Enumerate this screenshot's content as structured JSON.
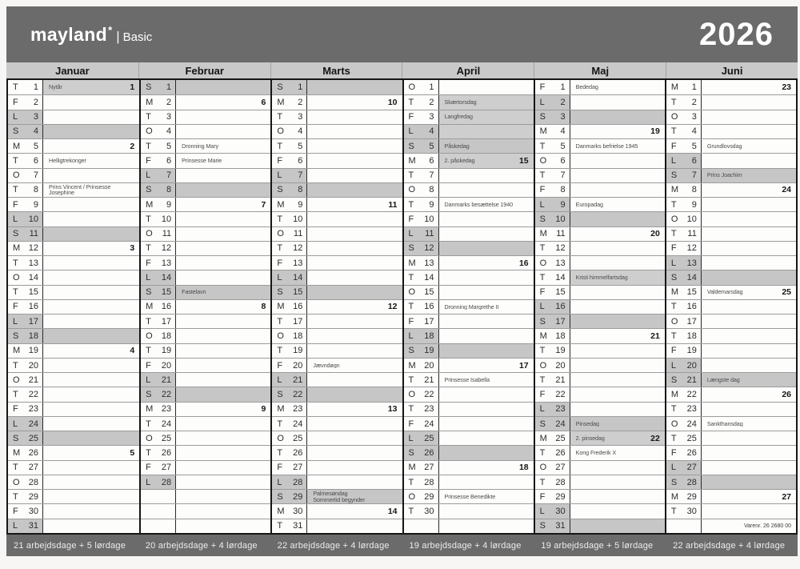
{
  "brand": {
    "name": "mayland",
    "star": "*",
    "separator": "|",
    "sub": "Basic"
  },
  "year": "2026",
  "colors": {
    "header_bg": "#6b6b6b",
    "bar_bg": "#c9c9c9",
    "weekend_shade": "#c6c6c6",
    "holiday_shade": "#cecece"
  },
  "months": [
    {
      "name": "Januar",
      "summary": "21 arbejdsdage + 5 lørdage",
      "days": [
        {
          "w": "T",
          "n": 1,
          "note": "Nytår",
          "wk": "1",
          "hs": true
        },
        {
          "w": "F",
          "n": 2
        },
        {
          "w": "L",
          "n": 3
        },
        {
          "w": "S",
          "n": 4
        },
        {
          "w": "M",
          "n": 5,
          "wk": "2"
        },
        {
          "w": "T",
          "n": 6,
          "note": "Helligtrekonger"
        },
        {
          "w": "O",
          "n": 7
        },
        {
          "w": "T",
          "n": 8,
          "note": "Prins Vincent / Prinsesse Josephine"
        },
        {
          "w": "F",
          "n": 9
        },
        {
          "w": "L",
          "n": 10
        },
        {
          "w": "S",
          "n": 11
        },
        {
          "w": "M",
          "n": 12,
          "wk": "3"
        },
        {
          "w": "T",
          "n": 13
        },
        {
          "w": "O",
          "n": 14
        },
        {
          "w": "T",
          "n": 15
        },
        {
          "w": "F",
          "n": 16
        },
        {
          "w": "L",
          "n": 17
        },
        {
          "w": "S",
          "n": 18
        },
        {
          "w": "M",
          "n": 19,
          "wk": "4"
        },
        {
          "w": "T",
          "n": 20
        },
        {
          "w": "O",
          "n": 21
        },
        {
          "w": "T",
          "n": 22
        },
        {
          "w": "F",
          "n": 23
        },
        {
          "w": "L",
          "n": 24
        },
        {
          "w": "S",
          "n": 25
        },
        {
          "w": "M",
          "n": 26,
          "wk": "5"
        },
        {
          "w": "T",
          "n": 27
        },
        {
          "w": "O",
          "n": 28
        },
        {
          "w": "T",
          "n": 29
        },
        {
          "w": "F",
          "n": 30
        },
        {
          "w": "L",
          "n": 31
        }
      ]
    },
    {
      "name": "Februar",
      "summary": "20 arbejdsdage + 4 lørdage",
      "days": [
        {
          "w": "S",
          "n": 1
        },
        {
          "w": "M",
          "n": 2,
          "wk": "6"
        },
        {
          "w": "T",
          "n": 3
        },
        {
          "w": "O",
          "n": 4
        },
        {
          "w": "T",
          "n": 5,
          "note": "Dronning Mary"
        },
        {
          "w": "F",
          "n": 6,
          "note": "Prinsesse Marie"
        },
        {
          "w": "L",
          "n": 7
        },
        {
          "w": "S",
          "n": 8
        },
        {
          "w": "M",
          "n": 9,
          "wk": "7"
        },
        {
          "w": "T",
          "n": 10
        },
        {
          "w": "O",
          "n": 11
        },
        {
          "w": "T",
          "n": 12
        },
        {
          "w": "F",
          "n": 13
        },
        {
          "w": "L",
          "n": 14
        },
        {
          "w": "S",
          "n": 15,
          "note": "Fastelavn"
        },
        {
          "w": "M",
          "n": 16,
          "wk": "8"
        },
        {
          "w": "T",
          "n": 17
        },
        {
          "w": "O",
          "n": 18
        },
        {
          "w": "T",
          "n": 19
        },
        {
          "w": "F",
          "n": 20
        },
        {
          "w": "L",
          "n": 21
        },
        {
          "w": "S",
          "n": 22
        },
        {
          "w": "M",
          "n": 23,
          "wk": "9"
        },
        {
          "w": "T",
          "n": 24
        },
        {
          "w": "O",
          "n": 25
        },
        {
          "w": "T",
          "n": 26
        },
        {
          "w": "F",
          "n": 27
        },
        {
          "w": "L",
          "n": 28
        }
      ]
    },
    {
      "name": "Marts",
      "summary": "22 arbejdsdage + 4 lørdage",
      "days": [
        {
          "w": "S",
          "n": 1
        },
        {
          "w": "M",
          "n": 2,
          "wk": "10"
        },
        {
          "w": "T",
          "n": 3
        },
        {
          "w": "O",
          "n": 4
        },
        {
          "w": "T",
          "n": 5
        },
        {
          "w": "F",
          "n": 6
        },
        {
          "w": "L",
          "n": 7
        },
        {
          "w": "S",
          "n": 8
        },
        {
          "w": "M",
          "n": 9,
          "wk": "11"
        },
        {
          "w": "T",
          "n": 10
        },
        {
          "w": "O",
          "n": 11
        },
        {
          "w": "T",
          "n": 12
        },
        {
          "w": "F",
          "n": 13
        },
        {
          "w": "L",
          "n": 14
        },
        {
          "w": "S",
          "n": 15
        },
        {
          "w": "M",
          "n": 16,
          "wk": "12"
        },
        {
          "w": "T",
          "n": 17
        },
        {
          "w": "O",
          "n": 18
        },
        {
          "w": "T",
          "n": 19
        },
        {
          "w": "F",
          "n": 20,
          "note": "Jævndøgn"
        },
        {
          "w": "L",
          "n": 21
        },
        {
          "w": "S",
          "n": 22
        },
        {
          "w": "M",
          "n": 23,
          "wk": "13"
        },
        {
          "w": "T",
          "n": 24
        },
        {
          "w": "O",
          "n": 25
        },
        {
          "w": "T",
          "n": 26
        },
        {
          "w": "F",
          "n": 27
        },
        {
          "w": "L",
          "n": 28
        },
        {
          "w": "S",
          "n": 29,
          "note": "Palmesøndag\nSommertid begynder"
        },
        {
          "w": "M",
          "n": 30,
          "wk": "14"
        },
        {
          "w": "T",
          "n": 31
        }
      ]
    },
    {
      "name": "April",
      "summary": "19 arbejdsdage + 4 lørdage",
      "days": [
        {
          "w": "O",
          "n": 1
        },
        {
          "w": "T",
          "n": 2,
          "note": "Skærtorsdag",
          "hs": true
        },
        {
          "w": "F",
          "n": 3,
          "note": "Langfredag",
          "hs": true
        },
        {
          "w": "L",
          "n": 4,
          "hs": true
        },
        {
          "w": "S",
          "n": 5,
          "note": "Påskedag"
        },
        {
          "w": "M",
          "n": 6,
          "note": "2. påskedag",
          "wk": "15",
          "hs": true
        },
        {
          "w": "T",
          "n": 7
        },
        {
          "w": "O",
          "n": 8
        },
        {
          "w": "T",
          "n": 9,
          "note": "Danmarks besættelse 1940"
        },
        {
          "w": "F",
          "n": 10
        },
        {
          "w": "L",
          "n": 11
        },
        {
          "w": "S",
          "n": 12
        },
        {
          "w": "M",
          "n": 13,
          "wk": "16"
        },
        {
          "w": "T",
          "n": 14
        },
        {
          "w": "O",
          "n": 15
        },
        {
          "w": "T",
          "n": 16,
          "note": "Dronning Margrethe II"
        },
        {
          "w": "F",
          "n": 17
        },
        {
          "w": "L",
          "n": 18
        },
        {
          "w": "S",
          "n": 19
        },
        {
          "w": "M",
          "n": 20,
          "wk": "17"
        },
        {
          "w": "T",
          "n": 21,
          "note": "Prinsesse Isabella"
        },
        {
          "w": "O",
          "n": 22
        },
        {
          "w": "T",
          "n": 23
        },
        {
          "w": "F",
          "n": 24
        },
        {
          "w": "L",
          "n": 25
        },
        {
          "w": "S",
          "n": 26
        },
        {
          "w": "M",
          "n": 27,
          "wk": "18"
        },
        {
          "w": "T",
          "n": 28
        },
        {
          "w": "O",
          "n": 29,
          "note": "Prinsesse Benedikte"
        },
        {
          "w": "T",
          "n": 30
        }
      ]
    },
    {
      "name": "Maj",
      "summary": "19 arbejdsdage + 5 lørdage",
      "days": [
        {
          "w": "F",
          "n": 1,
          "note": "Bededag"
        },
        {
          "w": "L",
          "n": 2
        },
        {
          "w": "S",
          "n": 3
        },
        {
          "w": "M",
          "n": 4,
          "wk": "19"
        },
        {
          "w": "T",
          "n": 5,
          "note": "Danmarks befrielse 1945"
        },
        {
          "w": "O",
          "n": 6
        },
        {
          "w": "T",
          "n": 7
        },
        {
          "w": "F",
          "n": 8
        },
        {
          "w": "L",
          "n": 9,
          "note": "Europadag"
        },
        {
          "w": "S",
          "n": 10
        },
        {
          "w": "M",
          "n": 11,
          "wk": "20"
        },
        {
          "w": "T",
          "n": 12
        },
        {
          "w": "O",
          "n": 13
        },
        {
          "w": "T",
          "n": 14,
          "note": "Kristi himmelfartsdag",
          "hs": true
        },
        {
          "w": "F",
          "n": 15
        },
        {
          "w": "L",
          "n": 16
        },
        {
          "w": "S",
          "n": 17
        },
        {
          "w": "M",
          "n": 18,
          "wk": "21"
        },
        {
          "w": "T",
          "n": 19
        },
        {
          "w": "O",
          "n": 20
        },
        {
          "w": "T",
          "n": 21
        },
        {
          "w": "F",
          "n": 22
        },
        {
          "w": "L",
          "n": 23
        },
        {
          "w": "S",
          "n": 24,
          "note": "Pinsedag"
        },
        {
          "w": "M",
          "n": 25,
          "note": "2. pinsedag",
          "wk": "22",
          "hs": true
        },
        {
          "w": "T",
          "n": 26,
          "note": "Kong Frederik X"
        },
        {
          "w": "O",
          "n": 27
        },
        {
          "w": "T",
          "n": 28
        },
        {
          "w": "F",
          "n": 29
        },
        {
          "w": "L",
          "n": 30
        },
        {
          "w": "S",
          "n": 31
        }
      ]
    },
    {
      "name": "Juni",
      "summary": "22 arbejdsdage + 4 lørdage",
      "days": [
        {
          "w": "M",
          "n": 1,
          "wk": "23"
        },
        {
          "w": "T",
          "n": 2
        },
        {
          "w": "O",
          "n": 3
        },
        {
          "w": "T",
          "n": 4
        },
        {
          "w": "F",
          "n": 5,
          "note": "Grundlovsdag"
        },
        {
          "w": "L",
          "n": 6
        },
        {
          "w": "S",
          "n": 7,
          "note": "Prins Joachim"
        },
        {
          "w": "M",
          "n": 8,
          "wk": "24"
        },
        {
          "w": "T",
          "n": 9
        },
        {
          "w": "O",
          "n": 10
        },
        {
          "w": "T",
          "n": 11
        },
        {
          "w": "F",
          "n": 12
        },
        {
          "w": "L",
          "n": 13
        },
        {
          "w": "S",
          "n": 14
        },
        {
          "w": "M",
          "n": 15,
          "note": "Valdemarsdag",
          "wk": "25"
        },
        {
          "w": "T",
          "n": 16
        },
        {
          "w": "O",
          "n": 17
        },
        {
          "w": "T",
          "n": 18
        },
        {
          "w": "F",
          "n": 19
        },
        {
          "w": "L",
          "n": 20
        },
        {
          "w": "S",
          "n": 21,
          "note": "Længste dag"
        },
        {
          "w": "M",
          "n": 22,
          "wk": "26"
        },
        {
          "w": "T",
          "n": 23
        },
        {
          "w": "O",
          "n": 24,
          "note": "Sankthansdag"
        },
        {
          "w": "T",
          "n": 25
        },
        {
          "w": "F",
          "n": 26
        },
        {
          "w": "L",
          "n": 27
        },
        {
          "w": "S",
          "n": 28
        },
        {
          "w": "M",
          "n": 29,
          "wk": "27"
        },
        {
          "w": "T",
          "n": 30
        },
        {
          "footnote": "Varenr. 26 2680 00"
        }
      ]
    }
  ]
}
